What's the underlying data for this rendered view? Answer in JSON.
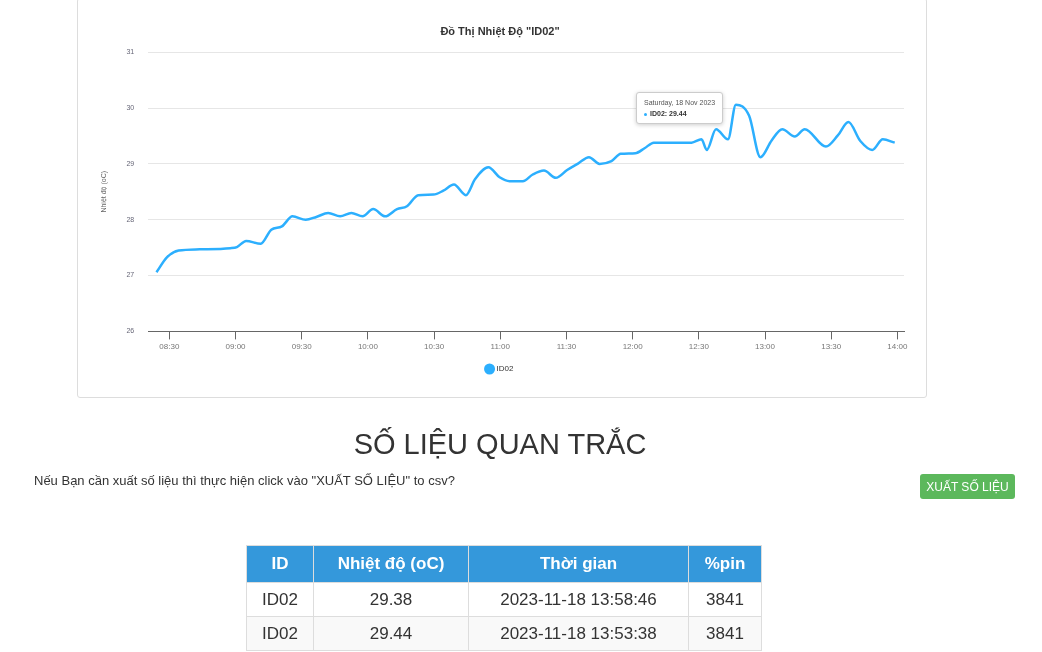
{
  "chart_data": {
    "type": "line",
    "title": "Đồ Thị Nhiệt Độ \"ID02\"",
    "ylabel": "Nhiệt độ (oC)",
    "x": [
      8.4025,
      8.483,
      8.57,
      8.73,
      8.96,
      9.01,
      9.08,
      9.19,
      9.27,
      9.35,
      9.43,
      9.53,
      9.61,
      9.7,
      9.79,
      9.875,
      9.96,
      10.04,
      10.13,
      10.22,
      10.295,
      10.38,
      10.495,
      10.57,
      10.65,
      10.74,
      10.81,
      10.91,
      10.995,
      11.07,
      11.17,
      11.245,
      11.33,
      11.42,
      11.505,
      11.59,
      11.67,
      11.75,
      11.84,
      11.91,
      12.02,
      12.09,
      12.16,
      12.445,
      12.52,
      12.56,
      12.63,
      12.72,
      12.78,
      12.88,
      12.965,
      13.05,
      13.13,
      13.225,
      13.3,
      13.46,
      13.55,
      13.63,
      13.72,
      13.81,
      13.89,
      13.98
    ],
    "series": [
      {
        "name": "ID02",
        "color": "#2caffe",
        "values": [
          27.06,
          27.33,
          27.45,
          27.47,
          27.49,
          27.51,
          27.62,
          27.57,
          27.82,
          27.88,
          28.06,
          28.0,
          28.05,
          28.12,
          28.06,
          28.12,
          28.06,
          28.19,
          28.06,
          28.19,
          28.24,
          28.44,
          28.45,
          28.52,
          28.63,
          28.44,
          28.73,
          28.94,
          28.76,
          28.69,
          28.69,
          28.81,
          28.88,
          28.75,
          28.89,
          29.01,
          29.12,
          29.0,
          29.05,
          29.18,
          29.19,
          29.28,
          29.38,
          29.38,
          29.44,
          29.25,
          29.62,
          29.44,
          30.06,
          29.86,
          29.12,
          29.42,
          29.62,
          29.49,
          29.62,
          29.31,
          29.51,
          29.75,
          29.41,
          29.25,
          29.44,
          29.38
        ]
      }
    ],
    "xlim": [
      8.34,
      14.05
    ],
    "xticks": [
      {
        "value": 8.5,
        "label": "08:30"
      },
      {
        "value": 9,
        "label": "09:00"
      },
      {
        "value": 9.5,
        "label": "09:30"
      },
      {
        "value": 10,
        "label": "10:00"
      },
      {
        "value": 10.5,
        "label": "10:30"
      },
      {
        "value": 11,
        "label": "11:00"
      },
      {
        "value": 11.5,
        "label": "11:30"
      },
      {
        "value": 12,
        "label": "12:00"
      },
      {
        "value": 12.5,
        "label": "12:30"
      },
      {
        "value": 13,
        "label": "13:00"
      },
      {
        "value": 13.5,
        "label": "13:30"
      },
      {
        "value": 14,
        "label": "14:00"
      }
    ],
    "ylim": [
      26,
      31
    ],
    "yticks": [
      26,
      27,
      28,
      29,
      30,
      31
    ],
    "grid": "y",
    "legend": "bottom",
    "marker": "none",
    "line_style": "solid",
    "annotations": [
      "Saturday, 18 Nov 2023\nID02: 29.44",
      "SỐ LIỆU QUAN TRẮC",
      "Nếu Bạn cần xuất số liệu thì thực hiện click vào \"XUẤT SỐ LIỆU\" to csv?",
      "XUẤT SỐ LIỆU",
      "ID",
      "Nhiệt độ (oC)",
      "Thời gian",
      "%pin",
      "ID02",
      "29.38",
      "2023-11-18 13:58:46",
      "3841",
      "ID02",
      "29.44",
      "2023-11-18 13:53:38",
      "3841"
    ]
  }
}
